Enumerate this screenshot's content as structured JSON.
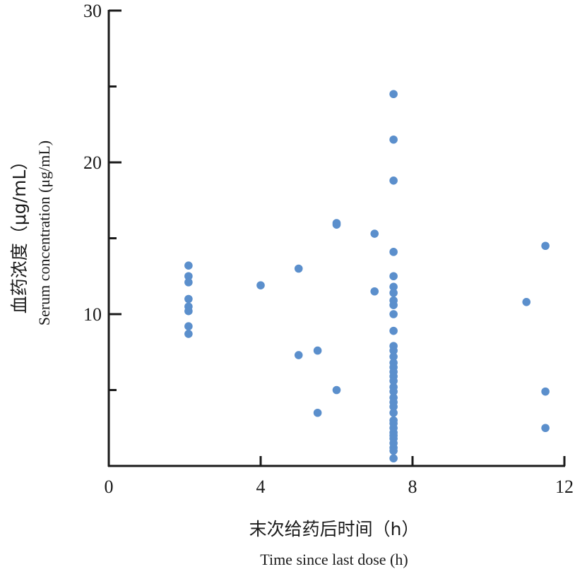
{
  "chart_data": {
    "type": "scatter",
    "xlabel_cn": "末次给药后时间（h）",
    "xlabel_en": "Time since last dose (h)",
    "ylabel_cn": "血药浓度（μg/mL）",
    "ylabel_en": "Serum concentration (μg/mL)",
    "xlim": [
      0,
      12
    ],
    "ylim": [
      0,
      30
    ],
    "x_ticks": [
      0,
      4,
      8,
      12
    ],
    "y_ticks": [
      10,
      20,
      30
    ],
    "y_minor_ticks": [
      5,
      15,
      25
    ],
    "grid": false,
    "marker_color": "#5B8FCC",
    "points": [
      {
        "x": 2.1,
        "y": 13.2
      },
      {
        "x": 2.1,
        "y": 12.5
      },
      {
        "x": 2.1,
        "y": 12.1
      },
      {
        "x": 2.1,
        "y": 11.0
      },
      {
        "x": 2.1,
        "y": 10.5
      },
      {
        "x": 2.1,
        "y": 10.2
      },
      {
        "x": 2.1,
        "y": 9.2
      },
      {
        "x": 2.1,
        "y": 8.7
      },
      {
        "x": 4.0,
        "y": 11.9
      },
      {
        "x": 5.0,
        "y": 13.0
      },
      {
        "x": 5.0,
        "y": 7.3
      },
      {
        "x": 5.5,
        "y": 7.6
      },
      {
        "x": 5.5,
        "y": 3.5
      },
      {
        "x": 6.0,
        "y": 16.0
      },
      {
        "x": 6.0,
        "y": 15.9
      },
      {
        "x": 6.0,
        "y": 5.0
      },
      {
        "x": 7.0,
        "y": 15.3
      },
      {
        "x": 7.0,
        "y": 11.5
      },
      {
        "x": 7.5,
        "y": 24.5
      },
      {
        "x": 7.5,
        "y": 21.5
      },
      {
        "x": 7.5,
        "y": 18.8
      },
      {
        "x": 7.5,
        "y": 14.1
      },
      {
        "x": 7.5,
        "y": 12.5
      },
      {
        "x": 7.5,
        "y": 11.8
      },
      {
        "x": 7.5,
        "y": 11.4
      },
      {
        "x": 7.5,
        "y": 10.9
      },
      {
        "x": 7.5,
        "y": 10.6
      },
      {
        "x": 7.5,
        "y": 10.0
      },
      {
        "x": 7.5,
        "y": 8.9
      },
      {
        "x": 7.5,
        "y": 7.9
      },
      {
        "x": 7.5,
        "y": 7.6
      },
      {
        "x": 7.5,
        "y": 7.2
      },
      {
        "x": 7.5,
        "y": 6.8
      },
      {
        "x": 7.5,
        "y": 6.5
      },
      {
        "x": 7.5,
        "y": 6.2
      },
      {
        "x": 7.5,
        "y": 5.9
      },
      {
        "x": 7.5,
        "y": 5.6
      },
      {
        "x": 7.5,
        "y": 5.2
      },
      {
        "x": 7.5,
        "y": 4.9
      },
      {
        "x": 7.5,
        "y": 4.5
      },
      {
        "x": 7.5,
        "y": 4.2
      },
      {
        "x": 7.5,
        "y": 3.9
      },
      {
        "x": 7.5,
        "y": 3.5
      },
      {
        "x": 7.5,
        "y": 3.0
      },
      {
        "x": 7.5,
        "y": 2.8
      },
      {
        "x": 7.5,
        "y": 2.5
      },
      {
        "x": 7.5,
        "y": 2.2
      },
      {
        "x": 7.5,
        "y": 2.0
      },
      {
        "x": 7.5,
        "y": 1.8
      },
      {
        "x": 7.5,
        "y": 1.5
      },
      {
        "x": 7.5,
        "y": 1.2
      },
      {
        "x": 7.5,
        "y": 1.0
      },
      {
        "x": 7.5,
        "y": 0.5
      },
      {
        "x": 11.0,
        "y": 10.8
      },
      {
        "x": 11.5,
        "y": 14.5
      },
      {
        "x": 11.5,
        "y": 4.9
      },
      {
        "x": 11.5,
        "y": 2.5
      }
    ]
  }
}
